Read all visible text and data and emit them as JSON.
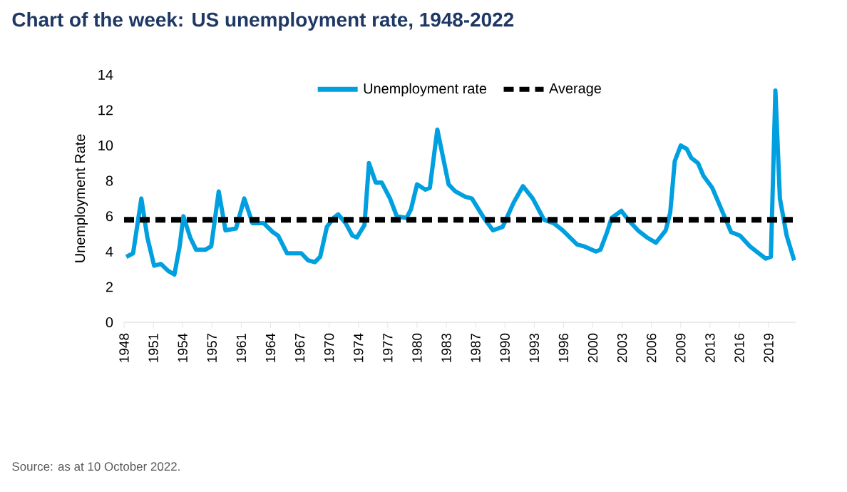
{
  "chart_data": {
    "type": "line",
    "title": "Chart of the week: US unemployment rate, 1948-2022",
    "ylabel": "Unemployment Rate",
    "xlim": [
      "1948-01",
      "2022-07"
    ],
    "xticks": [
      {
        "value": "1948-01",
        "label": "1948"
      },
      {
        "value": "1951-04",
        "label": "1951"
      },
      {
        "value": "1954-07",
        "label": "1954"
      },
      {
        "value": "1957-10",
        "label": "1957"
      },
      {
        "value": "1961-01",
        "label": "1961"
      },
      {
        "value": "1964-04",
        "label": "1964"
      },
      {
        "value": "1967-07",
        "label": "1967"
      },
      {
        "value": "1970-10",
        "label": "1970"
      },
      {
        "value": "1974-01",
        "label": "1974"
      },
      {
        "value": "1977-04",
        "label": "1977"
      },
      {
        "value": "1980-07",
        "label": "1980"
      },
      {
        "value": "1983-10",
        "label": "1983"
      },
      {
        "value": "1987-01",
        "label": "1987"
      },
      {
        "value": "1990-04",
        "label": "1990"
      },
      {
        "value": "1993-07",
        "label": "1993"
      },
      {
        "value": "1996-10",
        "label": "1996"
      },
      {
        "value": "2000-01",
        "label": "2000"
      },
      {
        "value": "2003-04",
        "label": "2003"
      },
      {
        "value": "2006-07",
        "label": "2006"
      },
      {
        "value": "2009-10",
        "label": "2009"
      },
      {
        "value": "2013-01",
        "label": "2013"
      },
      {
        "value": "2016-04",
        "label": "2016"
      },
      {
        "value": "2019-07",
        "label": "2019"
      }
    ],
    "ylim": [
      0,
      14
    ],
    "yticks": [
      0,
      2,
      4,
      6,
      8,
      10,
      12,
      14
    ],
    "legend": "top",
    "series": [
      {
        "name": "Unemployment rate",
        "color": "#00a0e0",
        "line_style": "solid",
        "x": [
          "1948-04",
          "1949-01",
          "1949-12",
          "1950-08",
          "1951-05",
          "1952-02",
          "1952-12",
          "1953-08",
          "1954-03",
          "1954-08",
          "1955-05",
          "1956-01",
          "1957-01",
          "1957-09",
          "1958-07",
          "1959-04",
          "1960-06",
          "1961-05",
          "1962-04",
          "1963-07",
          "1964-07",
          "1965-02",
          "1966-02",
          "1967-09",
          "1968-06",
          "1969-03",
          "1969-10",
          "1970-07",
          "1971-04",
          "1971-10",
          "1972-08",
          "1973-05",
          "1973-11",
          "1974-09",
          "1975-03",
          "1975-12",
          "1976-08",
          "1977-07",
          "1978-04",
          "1979-05",
          "1979-11",
          "1980-07",
          "1981-06",
          "1981-12",
          "1982-10",
          "1984-01",
          "1984-10",
          "1985-11",
          "1986-08",
          "1987-12",
          "1988-12",
          "1990-01",
          "1991-04",
          "1992-04",
          "1993-05",
          "1994-08",
          "1995-09",
          "1996-09",
          "1998-04",
          "1999-01",
          "2000-05",
          "2000-11",
          "2001-08",
          "2002-02",
          "2003-03",
          "2003-12",
          "2005-01",
          "2006-01",
          "2007-01",
          "2008-02",
          "2008-08",
          "2009-02",
          "2009-10",
          "2010-06",
          "2010-12",
          "2011-09",
          "2012-04",
          "2013-04",
          "2013-10",
          "2014-08",
          "2015-05",
          "2016-05",
          "2017-06",
          "2018-03",
          "2019-03",
          "2019-10",
          "2020-04",
          "2020-10",
          "2021-07",
          "2022-05"
        ],
        "values": [
          3.7,
          3.9,
          7.0,
          4.8,
          3.2,
          3.3,
          2.9,
          2.7,
          4.3,
          6.0,
          4.8,
          4.1,
          4.1,
          4.3,
          7.4,
          5.2,
          5.3,
          7.0,
          5.6,
          5.6,
          5.1,
          4.9,
          3.9,
          3.9,
          3.5,
          3.4,
          3.7,
          5.4,
          5.9,
          6.1,
          5.6,
          4.9,
          4.8,
          5.5,
          9.0,
          7.9,
          7.9,
          7.0,
          6.0,
          5.9,
          6.4,
          7.8,
          7.5,
          7.6,
          10.9,
          7.8,
          7.4,
          7.1,
          7.0,
          5.9,
          5.2,
          5.4,
          6.8,
          7.7,
          7.0,
          5.8,
          5.6,
          5.2,
          4.4,
          4.3,
          4.0,
          4.1,
          5.1,
          5.9,
          6.3,
          5.8,
          5.2,
          4.8,
          4.5,
          5.2,
          6.2,
          9.1,
          10.0,
          9.8,
          9.3,
          9.0,
          8.3,
          7.6,
          7.0,
          6.0,
          5.1,
          4.9,
          4.3,
          4.0,
          3.6,
          3.7,
          13.1,
          7.0,
          4.9,
          3.5
        ]
      },
      {
        "name": "Average",
        "color": "#000000",
        "line_style": "dashed",
        "x": [
          "1948-01",
          "2022-07"
        ],
        "values": [
          5.8,
          5.8
        ]
      }
    ],
    "annotations": [
      "Source: as at 10 October 2022."
    ]
  }
}
